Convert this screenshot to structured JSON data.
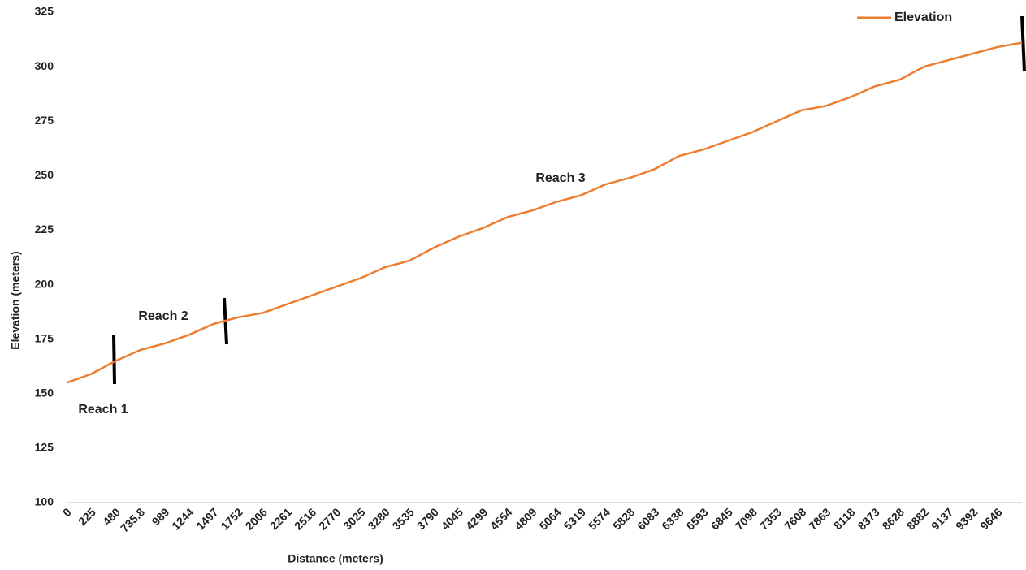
{
  "chart_data": {
    "type": "line",
    "xlabel": "Distance (meters)",
    "ylabel": "Elevation  (meters)",
    "categories": [
      "0",
      "225",
      "480",
      "735.8",
      "989",
      "1244",
      "1497",
      "1752",
      "2006",
      "2261",
      "2516",
      "2770",
      "3025",
      "3280",
      "3535",
      "3790",
      "4045",
      "4299",
      "4554",
      "4809",
      "5064",
      "5319",
      "5574",
      "5828",
      "6083",
      "6338",
      "6593",
      "6845",
      "7098",
      "7353",
      "7608",
      "7863",
      "8118",
      "8373",
      "8628",
      "8882",
      "9137",
      "9392",
      "9646",
      null
    ],
    "series": [
      {
        "name": "Elevation",
        "color": "#ed7d31",
        "values": [
          155,
          159,
          165,
          170,
          173,
          177,
          182,
          185,
          187,
          191,
          195,
          199,
          203,
          208,
          211,
          217,
          222,
          226,
          231,
          234,
          238,
          241,
          246,
          249,
          253,
          259,
          262,
          266,
          270,
          275,
          280,
          282,
          286,
          291,
          294,
          300,
          303,
          306,
          309,
          311
        ]
      }
    ],
    "ylim": [
      100,
      325
    ],
    "yticks": [
      100,
      125,
      150,
      175,
      200,
      225,
      250,
      275,
      300,
      325
    ],
    "grid": false,
    "legend": "top-right",
    "annotations": [
      "Reach 1",
      "Reach 2",
      "Reach 3"
    ]
  }
}
